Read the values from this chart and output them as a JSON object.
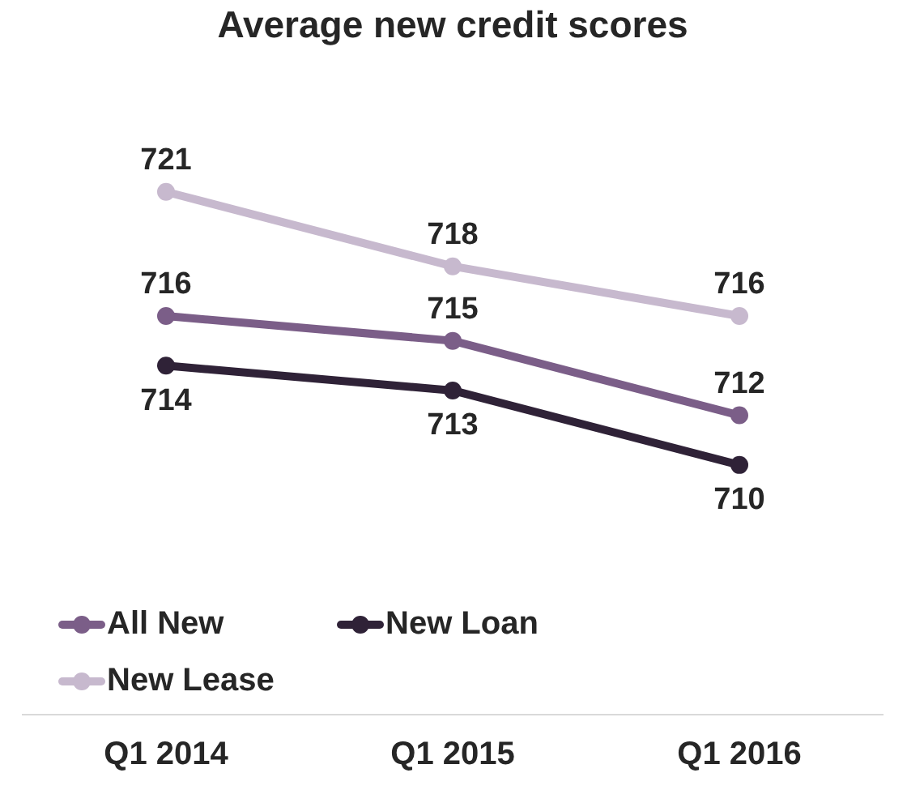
{
  "chart_data": {
    "type": "line",
    "title": "Average new credit scores",
    "categories": [
      "Q1 2014",
      "Q1 2015",
      "Q1 2016"
    ],
    "series": [
      {
        "name": "All New",
        "color": "#7b5e88",
        "values": [
          716,
          715,
          712
        ]
      },
      {
        "name": "New Loan",
        "color": "#2f2237",
        "values": [
          714,
          713,
          710
        ]
      },
      {
        "name": "New Lease",
        "color": "#c7b9ce",
        "values": [
          721,
          718,
          716
        ]
      }
    ],
    "data_labels": true,
    "legend": "bottom left",
    "marker": "circle",
    "line_style": "solid",
    "tick_labels": "x"
  }
}
